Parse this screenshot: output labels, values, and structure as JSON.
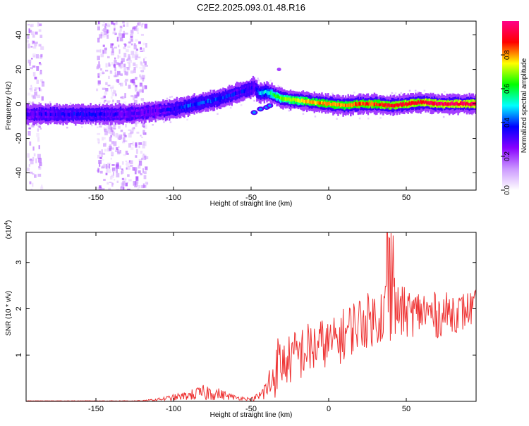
{
  "title": "C2E2.2025.093.01.48.R16",
  "chart_data": [
    {
      "type": "heatmap",
      "xlabel": "Height of straight line (km)",
      "ylabel": "Frequency (Hz)",
      "xlim": [
        -195,
        95
      ],
      "ylim": [
        -50,
        48
      ],
      "xticks": [
        -150,
        -100,
        -50,
        0,
        50
      ],
      "yticks": [
        -40,
        -20,
        0,
        20,
        40
      ],
      "colorbar": {
        "label": "Normalized spectral amplitude",
        "ticks": [
          "0.0",
          "0.2",
          "0.4",
          "0.6",
          "0.8"
        ],
        "tick_values": [
          0.0,
          0.2,
          0.4,
          0.6,
          0.8
        ],
        "range": [
          0,
          1
        ],
        "colors": [
          "#ffffff",
          "#cc99ff",
          "#8800ff",
          "#0000ff",
          "#00ffff",
          "#00ff00",
          "#ffff00",
          "#ff0000",
          "#ff0088"
        ]
      },
      "ridge": {
        "x": [
          -195,
          -170,
          -150,
          -130,
          -120,
          -110,
          -100,
          -90,
          -80,
          -70,
          -60,
          -50,
          -48,
          -45,
          -40,
          -35,
          -30,
          -20,
          -10,
          0,
          10,
          20,
          30,
          40,
          50,
          60,
          70,
          80,
          95
        ],
        "frequency_hz": [
          -6,
          -6,
          -6,
          -6,
          -5,
          -4,
          -3,
          -1,
          1,
          3,
          6,
          9,
          10,
          6,
          7,
          5,
          3,
          2,
          1,
          0,
          -1,
          0,
          0,
          -1,
          0,
          1,
          0,
          0,
          0
        ],
        "amplitude": [
          0.3,
          0.35,
          0.35,
          0.3,
          0.3,
          0.3,
          0.35,
          0.4,
          0.4,
          0.4,
          0.35,
          0.35,
          0.3,
          0.45,
          0.5,
          0.6,
          0.7,
          0.75,
          0.8,
          0.8,
          0.8,
          0.85,
          0.85,
          0.9,
          0.9,
          0.92,
          0.95,
          0.95,
          0.95
        ]
      },
      "secondary_branch": {
        "x": [
          -48,
          -44,
          -40,
          -38
        ],
        "frequency_hz": [
          -5,
          -3,
          -2,
          -1
        ]
      },
      "noise_bands_x": [
        [
          -195,
          -185
        ],
        [
          -150,
          -118
        ]
      ],
      "noise_outlier": {
        "x": -32,
        "frequency_hz": 20
      }
    },
    {
      "type": "line",
      "xlabel": "Height of straight line (km)",
      "ylabel": "SNR (10 * v/v)",
      "ylabel_multiplier": "(x10",
      "ylabel_exponent": "4",
      "ylabel_close": ")",
      "xlim": [
        -195,
        95
      ],
      "ylim": [
        0,
        3.65
      ],
      "xticks": [
        -150,
        -100,
        -50,
        0,
        50
      ],
      "yticks": [
        1,
        2,
        3
      ],
      "series": [
        {
          "name": "SNR",
          "color": "#ee3333",
          "x": [
            -195,
            -150,
            -120,
            -110,
            -100,
            -90,
            -85,
            -80,
            -75,
            -70,
            -60,
            -50,
            -45,
            -40,
            -35,
            -33,
            -30,
            -25,
            -20,
            -15,
            -10,
            -5,
            0,
            5,
            10,
            15,
            20,
            25,
            30,
            35,
            38,
            40,
            45,
            50,
            55,
            60,
            65,
            70,
            75,
            80,
            85,
            90,
            95
          ],
          "y_mean": [
            0.01,
            0.01,
            0.01,
            0.04,
            0.08,
            0.13,
            0.16,
            0.18,
            0.2,
            0.15,
            0.08,
            0.05,
            0.1,
            0.25,
            0.6,
            0.85,
            0.8,
            0.9,
            1.0,
            1.1,
            1.15,
            1.25,
            1.25,
            1.3,
            1.45,
            1.6,
            1.7,
            1.75,
            1.8,
            1.9,
            2.0,
            2.05,
            1.95,
            1.9,
            1.9,
            1.95,
            1.9,
            1.85,
            1.9,
            1.95,
            1.9,
            2.0,
            2.0
          ],
          "noise": [
            0.005,
            0.005,
            0.01,
            0.03,
            0.07,
            0.1,
            0.15,
            0.18,
            0.18,
            0.12,
            0.05,
            0.03,
            0.1,
            0.3,
            0.6,
            0.6,
            0.5,
            0.55,
            0.6,
            0.6,
            0.6,
            0.55,
            0.5,
            0.55,
            0.6,
            0.6,
            0.6,
            0.6,
            0.6,
            0.65,
            0.8,
            0.75,
            0.6,
            0.55,
            0.5,
            0.5,
            0.5,
            0.5,
            0.45,
            0.45,
            0.45,
            0.4,
            0.4
          ]
        }
      ]
    }
  ]
}
